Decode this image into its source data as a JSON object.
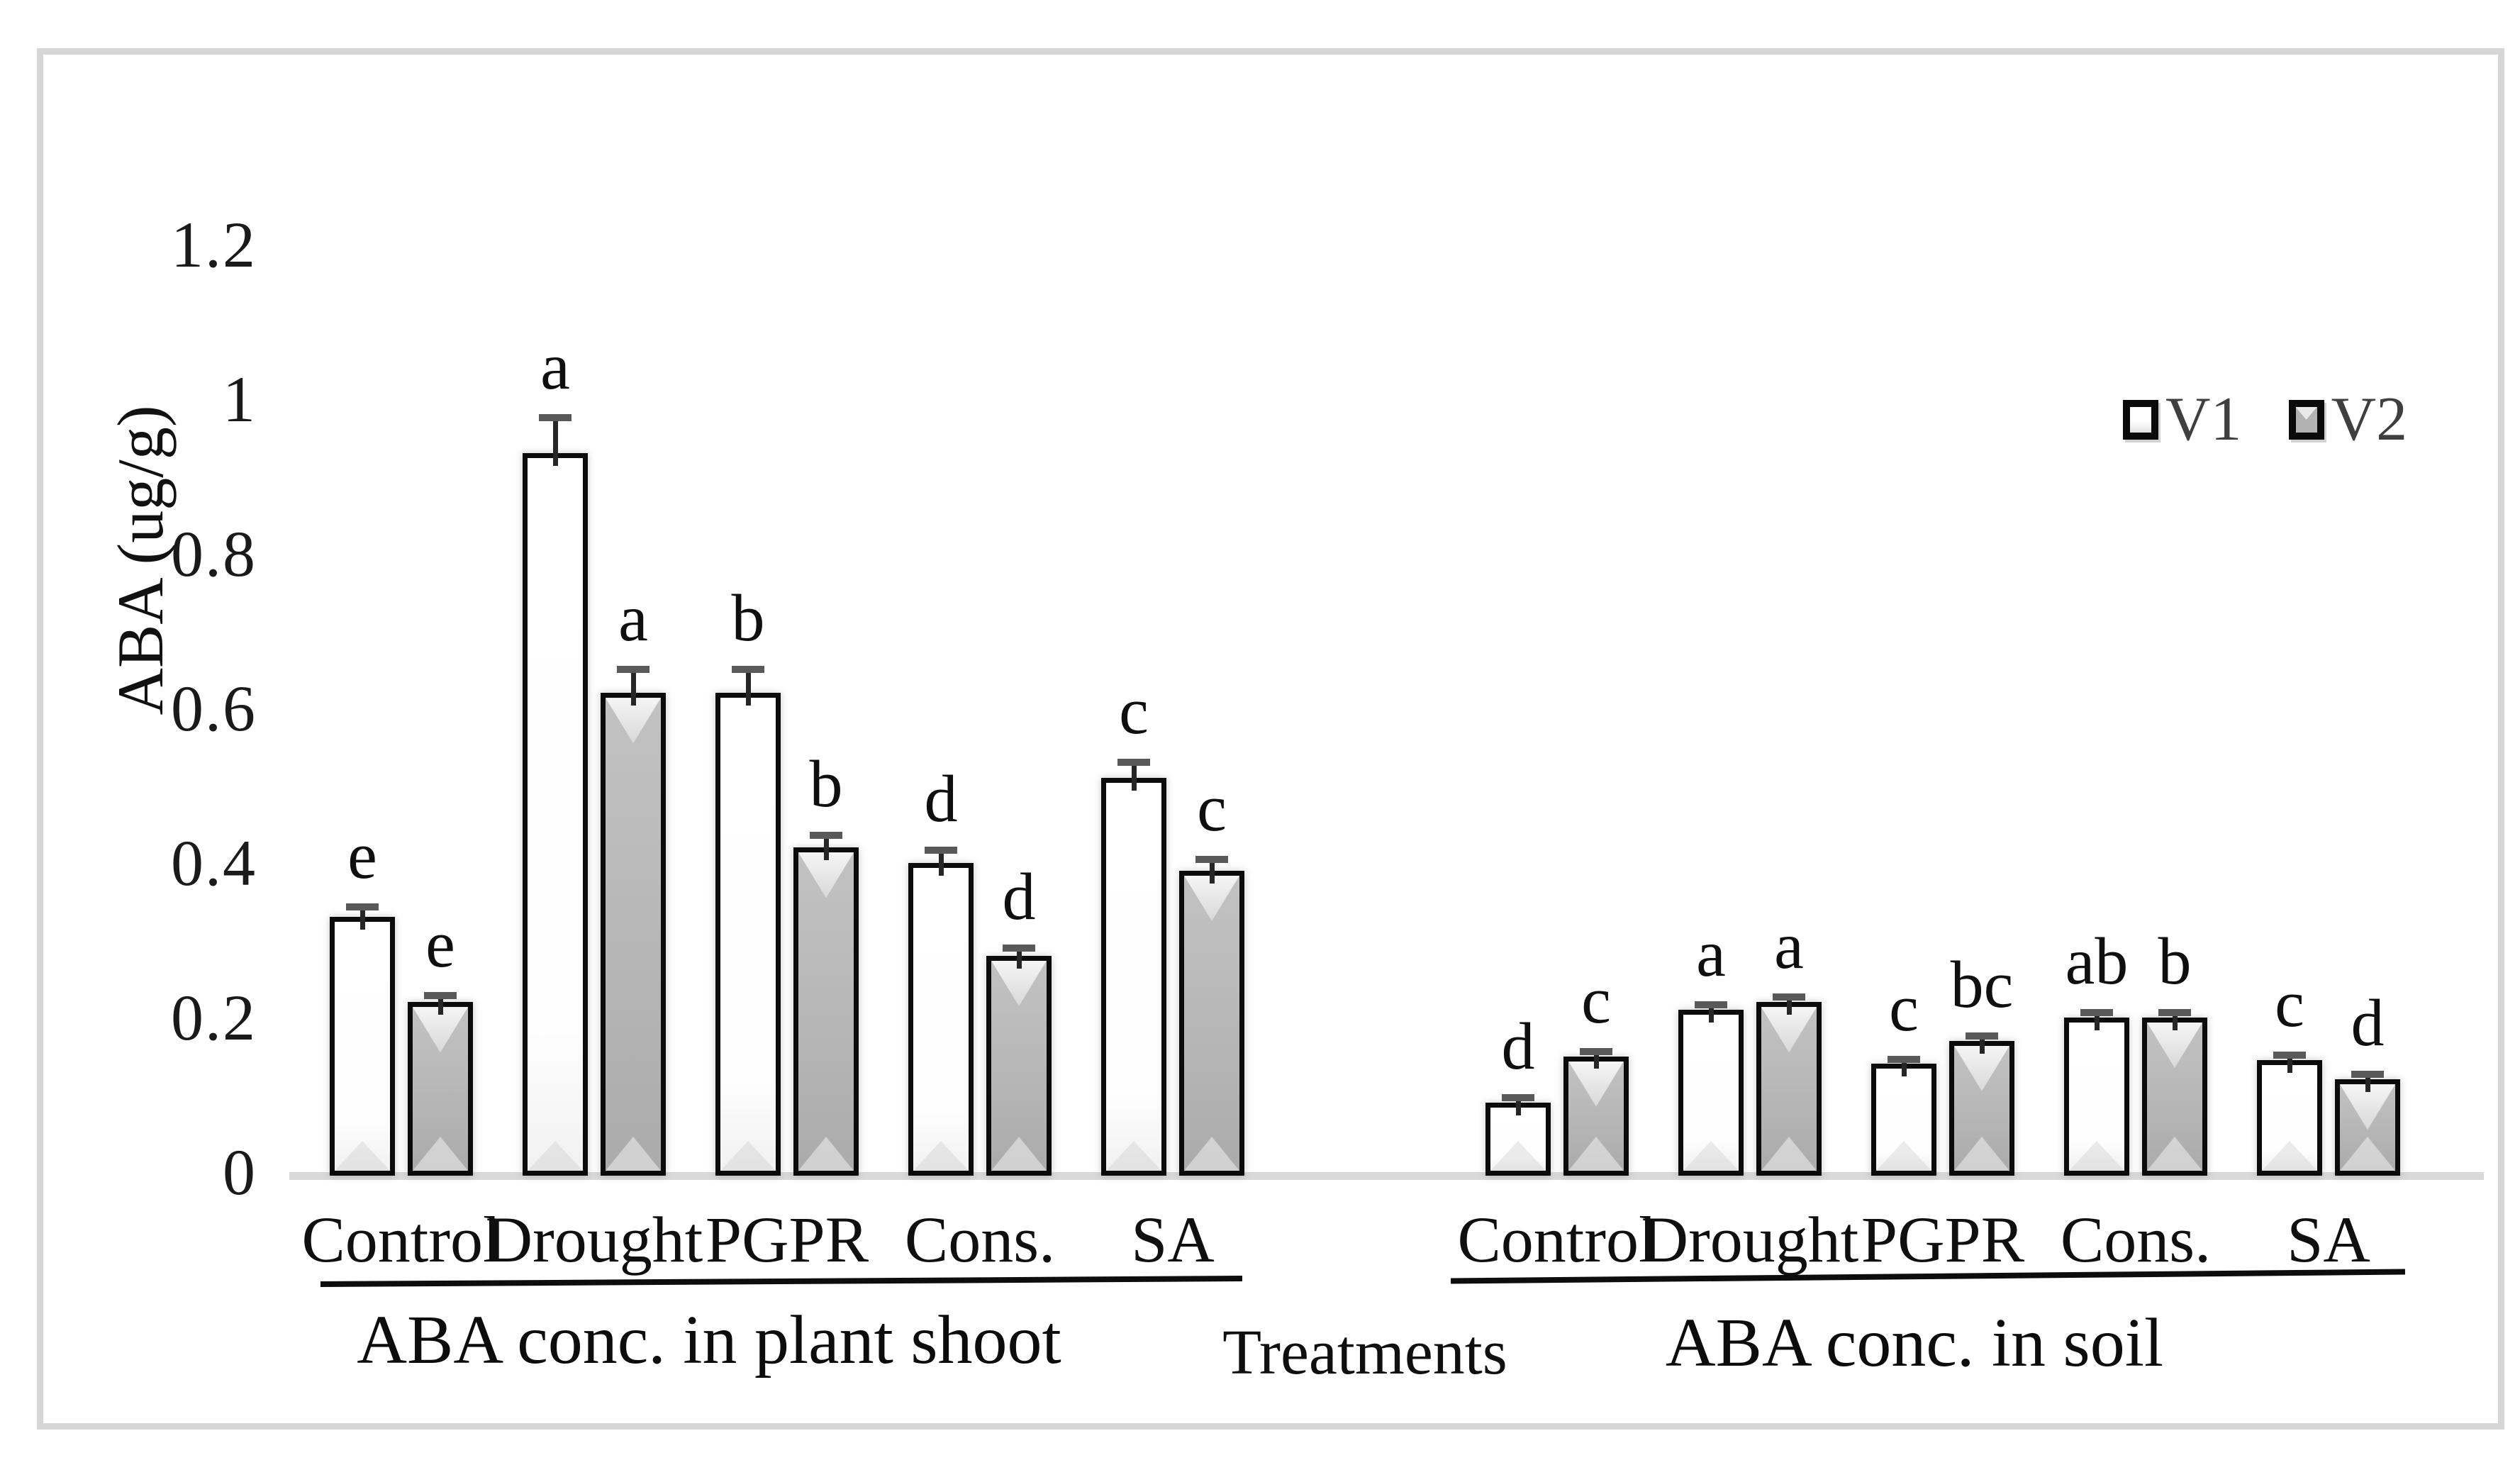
{
  "figure": {
    "y_axis": {
      "title": "ABA (ug/g)",
      "tick_labels": [
        "1.2",
        "1",
        "0.8",
        "0.6",
        "0.4",
        "0.2",
        "0"
      ],
      "tick_values": [
        1.2,
        1,
        0.8,
        0.6,
        0.4,
        0.2,
        0
      ]
    },
    "x_axis_title": "Treatments",
    "legend": [
      {
        "label": "V1",
        "swatch": "white-bar-swatch"
      },
      {
        "label": "V2",
        "swatch": "gray-bar-swatch"
      }
    ],
    "colors": {
      "v1_fill": "#ffffff",
      "v2_fill": "#b6b6b6",
      "bar_border": "#0b0b0b",
      "error_bar": "#595959",
      "baseline": "#d9d9d9",
      "legend_text": "#3f3f3f",
      "frame": "#d6d6d6"
    }
  },
  "chart_data": [
    {
      "type": "bar",
      "title": "ABA conc. in plant shoot",
      "categories": [
        "Control",
        "Drought",
        "PGPR",
        "Cons.",
        "SA"
      ],
      "series": [
        {
          "name": "V1",
          "values": [
            0.33,
            0.93,
            0.62,
            0.4,
            0.51
          ],
          "errors": [
            0.015,
            0.048,
            0.032,
            0.018,
            0.022
          ],
          "letters": [
            "e",
            "a",
            "b",
            "d",
            "c"
          ]
        },
        {
          "name": "V2",
          "values": [
            0.22,
            0.62,
            0.42,
            0.28,
            0.39
          ],
          "errors": [
            0.01,
            0.032,
            0.018,
            0.012,
            0.016
          ],
          "letters": [
            "e",
            "a",
            "b",
            "d",
            "c"
          ]
        }
      ],
      "xlabel": "Treatments",
      "ylabel": "ABA (ug/g)",
      "ylim": [
        0,
        1.2
      ],
      "grid": false,
      "legend_position": "top-right"
    },
    {
      "type": "bar",
      "title": "ABA conc. in soil",
      "categories": [
        "Control",
        "Drought",
        "PGPR",
        "Cons.",
        "SA"
      ],
      "series": [
        {
          "name": "V1",
          "values": [
            0.09,
            0.21,
            0.14,
            0.2,
            0.145
          ],
          "errors": [
            0.008,
            0.008,
            0.008,
            0.008,
            0.008
          ],
          "letters": [
            "d",
            "a",
            "c",
            "ab",
            "c"
          ]
        },
        {
          "name": "V2",
          "values": [
            0.15,
            0.22,
            0.17,
            0.2,
            0.12
          ],
          "errors": [
            0.008,
            0.008,
            0.008,
            0.008,
            0.008
          ],
          "letters": [
            "c",
            "a",
            "bc",
            "b",
            "d"
          ]
        }
      ],
      "xlabel": "Treatments",
      "ylabel": "ABA (ug/g)",
      "ylim": [
        0,
        1.2
      ],
      "grid": false,
      "legend_position": "top-right"
    }
  ]
}
